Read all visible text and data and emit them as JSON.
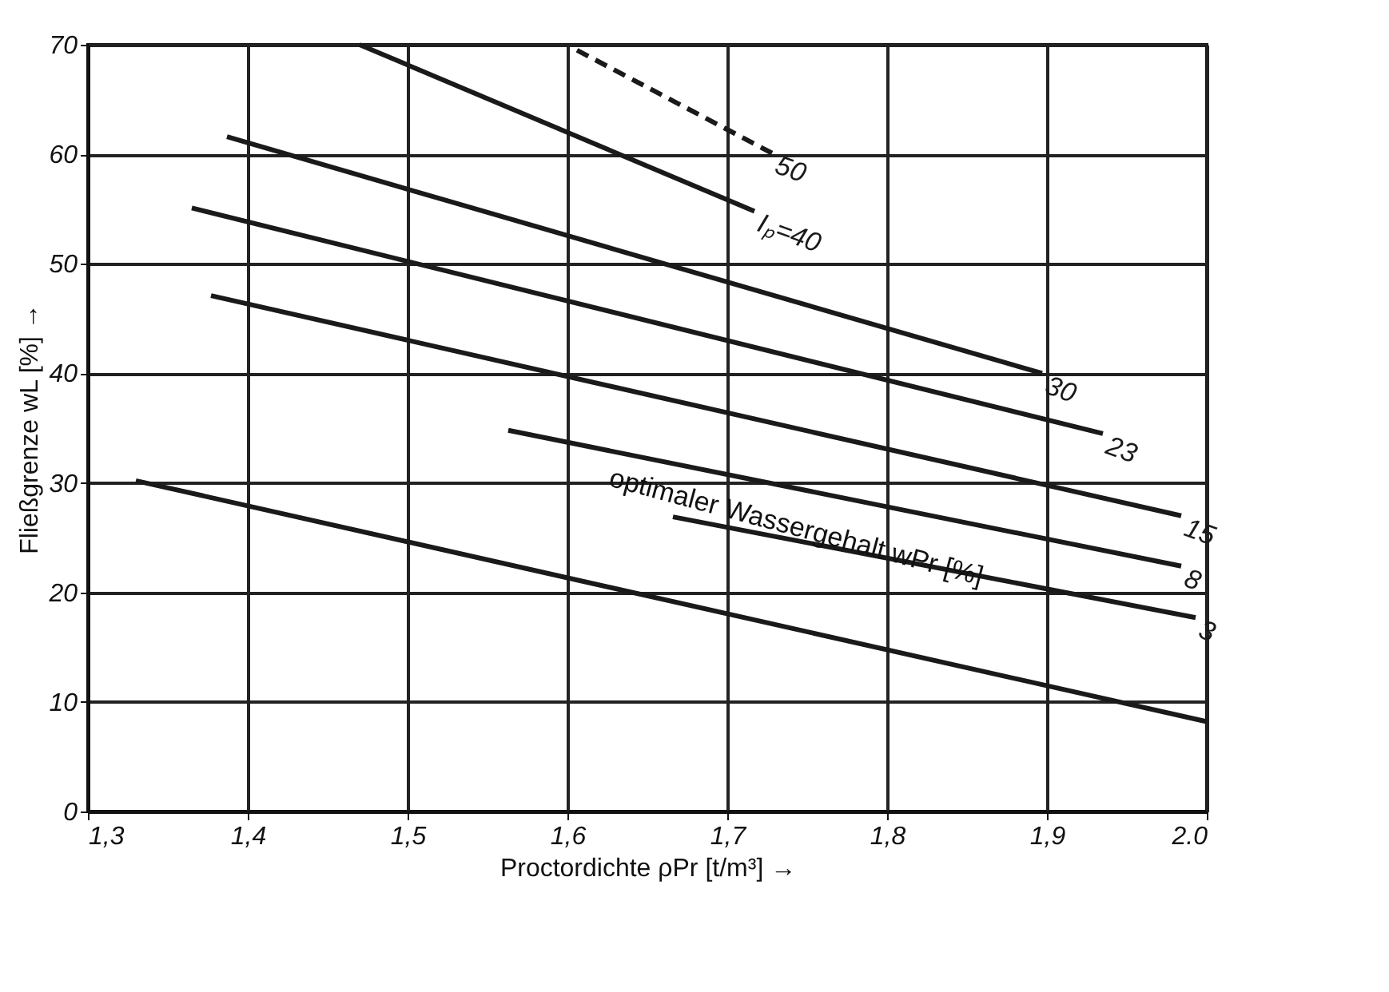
{
  "chart_data": {
    "type": "line",
    "xlabel": "Proctordichte ρPr [t/m³] →",
    "ylabel": "Fließgrenze wL [%] →",
    "xlim": [
      1.3,
      2.0
    ],
    "ylim": [
      0,
      70
    ],
    "xticks": [
      {
        "value": 1.3,
        "label": "1,3"
      },
      {
        "value": 1.4,
        "label": "1,4"
      },
      {
        "value": 1.5,
        "label": "1,5"
      },
      {
        "value": 1.6,
        "label": "1,6"
      },
      {
        "value": 1.7,
        "label": "1,7"
      },
      {
        "value": 1.8,
        "label": "1,8"
      },
      {
        "value": 1.9,
        "label": "1,9"
      },
      {
        "value": 2.0,
        "label": "2.0"
      }
    ],
    "yticks": [
      0,
      10,
      20,
      30,
      40,
      50,
      60,
      70
    ],
    "grid": true,
    "marker": "none",
    "series": [
      {
        "name": "50",
        "color": "#1a1a1a",
        "line_style": "dashed",
        "x": [
          1.606,
          1.728
        ],
        "values": [
          69.5,
          60.1
        ]
      },
      {
        "name": "Iₚ=40",
        "color": "#1a1a1a",
        "line_style": "solid",
        "x": [
          1.47,
          1.717
        ],
        "values": [
          70,
          54.8
        ]
      },
      {
        "name": "30",
        "color": "#1a1a1a",
        "line_style": "solid",
        "x": [
          1.387,
          1.897
        ],
        "values": [
          61.6,
          40
        ]
      },
      {
        "name": "23",
        "color": "#1a1a1a",
        "line_style": "solid",
        "x": [
          1.365,
          1.935
        ],
        "values": [
          55.1,
          34.5
        ]
      },
      {
        "name": "15",
        "color": "#1a1a1a",
        "line_style": "solid",
        "x": [
          1.377,
          1.984
        ],
        "values": [
          47.1,
          27
        ]
      },
      {
        "name": "8",
        "color": "#1a1a1a",
        "line_style": "solid",
        "x": [
          1.563,
          1.984
        ],
        "values": [
          34.8,
          22.4
        ]
      },
      {
        "name": "3",
        "color": "#1a1a1a",
        "line_style": "solid",
        "x": [
          1.666,
          1.993
        ],
        "values": [
          26.9,
          17.7
        ]
      },
      {
        "color": "#1a1a1a",
        "line_style": "solid",
        "x": [
          1.33,
          2.0
        ],
        "values": [
          30.2,
          8.2
        ]
      }
    ],
    "annotations": [
      "optimaler Wassergehalt wPr [%]"
    ]
  }
}
